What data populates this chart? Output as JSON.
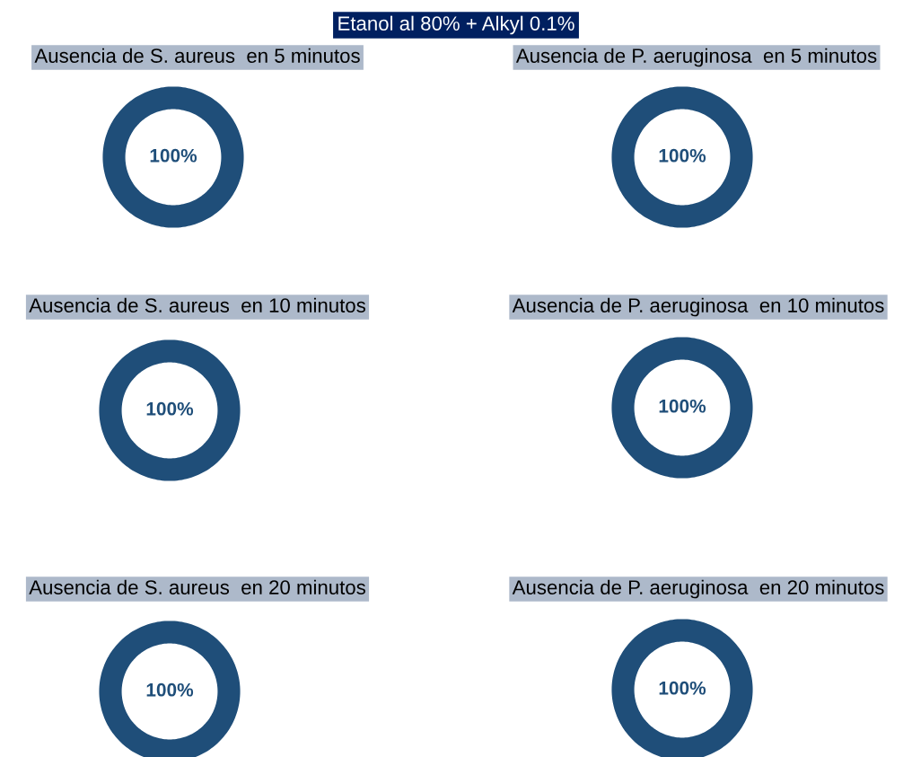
{
  "chart_data": [
    {
      "type": "pie",
      "title": "Ausencia de S. aureus  en 5 minutos",
      "categories": [
        null
      ],
      "values": [
        100
      ],
      "colors": [
        "#1f4e79"
      ],
      "value_labels": [
        "100%"
      ],
      "annotations": [
        "Etanol al 80% + Alkyl 0.1%"
      ]
    },
    {
      "type": "pie",
      "title": "Ausencia de P. aeruginosa  en 5 minutos",
      "categories": [
        null
      ],
      "values": [
        100
      ],
      "colors": [
        "#1f4e79"
      ],
      "value_labels": [
        "100%"
      ]
    },
    {
      "type": "pie",
      "title": "Ausencia de S. aureus  en 10 minutos",
      "categories": [
        null
      ],
      "values": [
        100
      ],
      "colors": [
        "#1f4e79"
      ],
      "value_labels": [
        "100%"
      ]
    },
    {
      "type": "pie",
      "title": "Ausencia de P. aeruginosa  en 10 minutos",
      "categories": [
        null
      ],
      "values": [
        100
      ],
      "colors": [
        "#1f4e79"
      ],
      "value_labels": [
        "100%"
      ]
    },
    {
      "type": "pie",
      "title": "Ausencia de S. aureus  en 20 minutos",
      "categories": [
        null
      ],
      "values": [
        100
      ],
      "colors": [
        "#1f4e79"
      ],
      "value_labels": [
        "100%"
      ]
    },
    {
      "type": "pie",
      "title": "Ausencia de P. aeruginosa  en 20 minutos",
      "categories": [
        null
      ],
      "values": [
        100
      ],
      "colors": [
        "#1f4e79"
      ],
      "value_labels": [
        "100%"
      ]
    }
  ]
}
